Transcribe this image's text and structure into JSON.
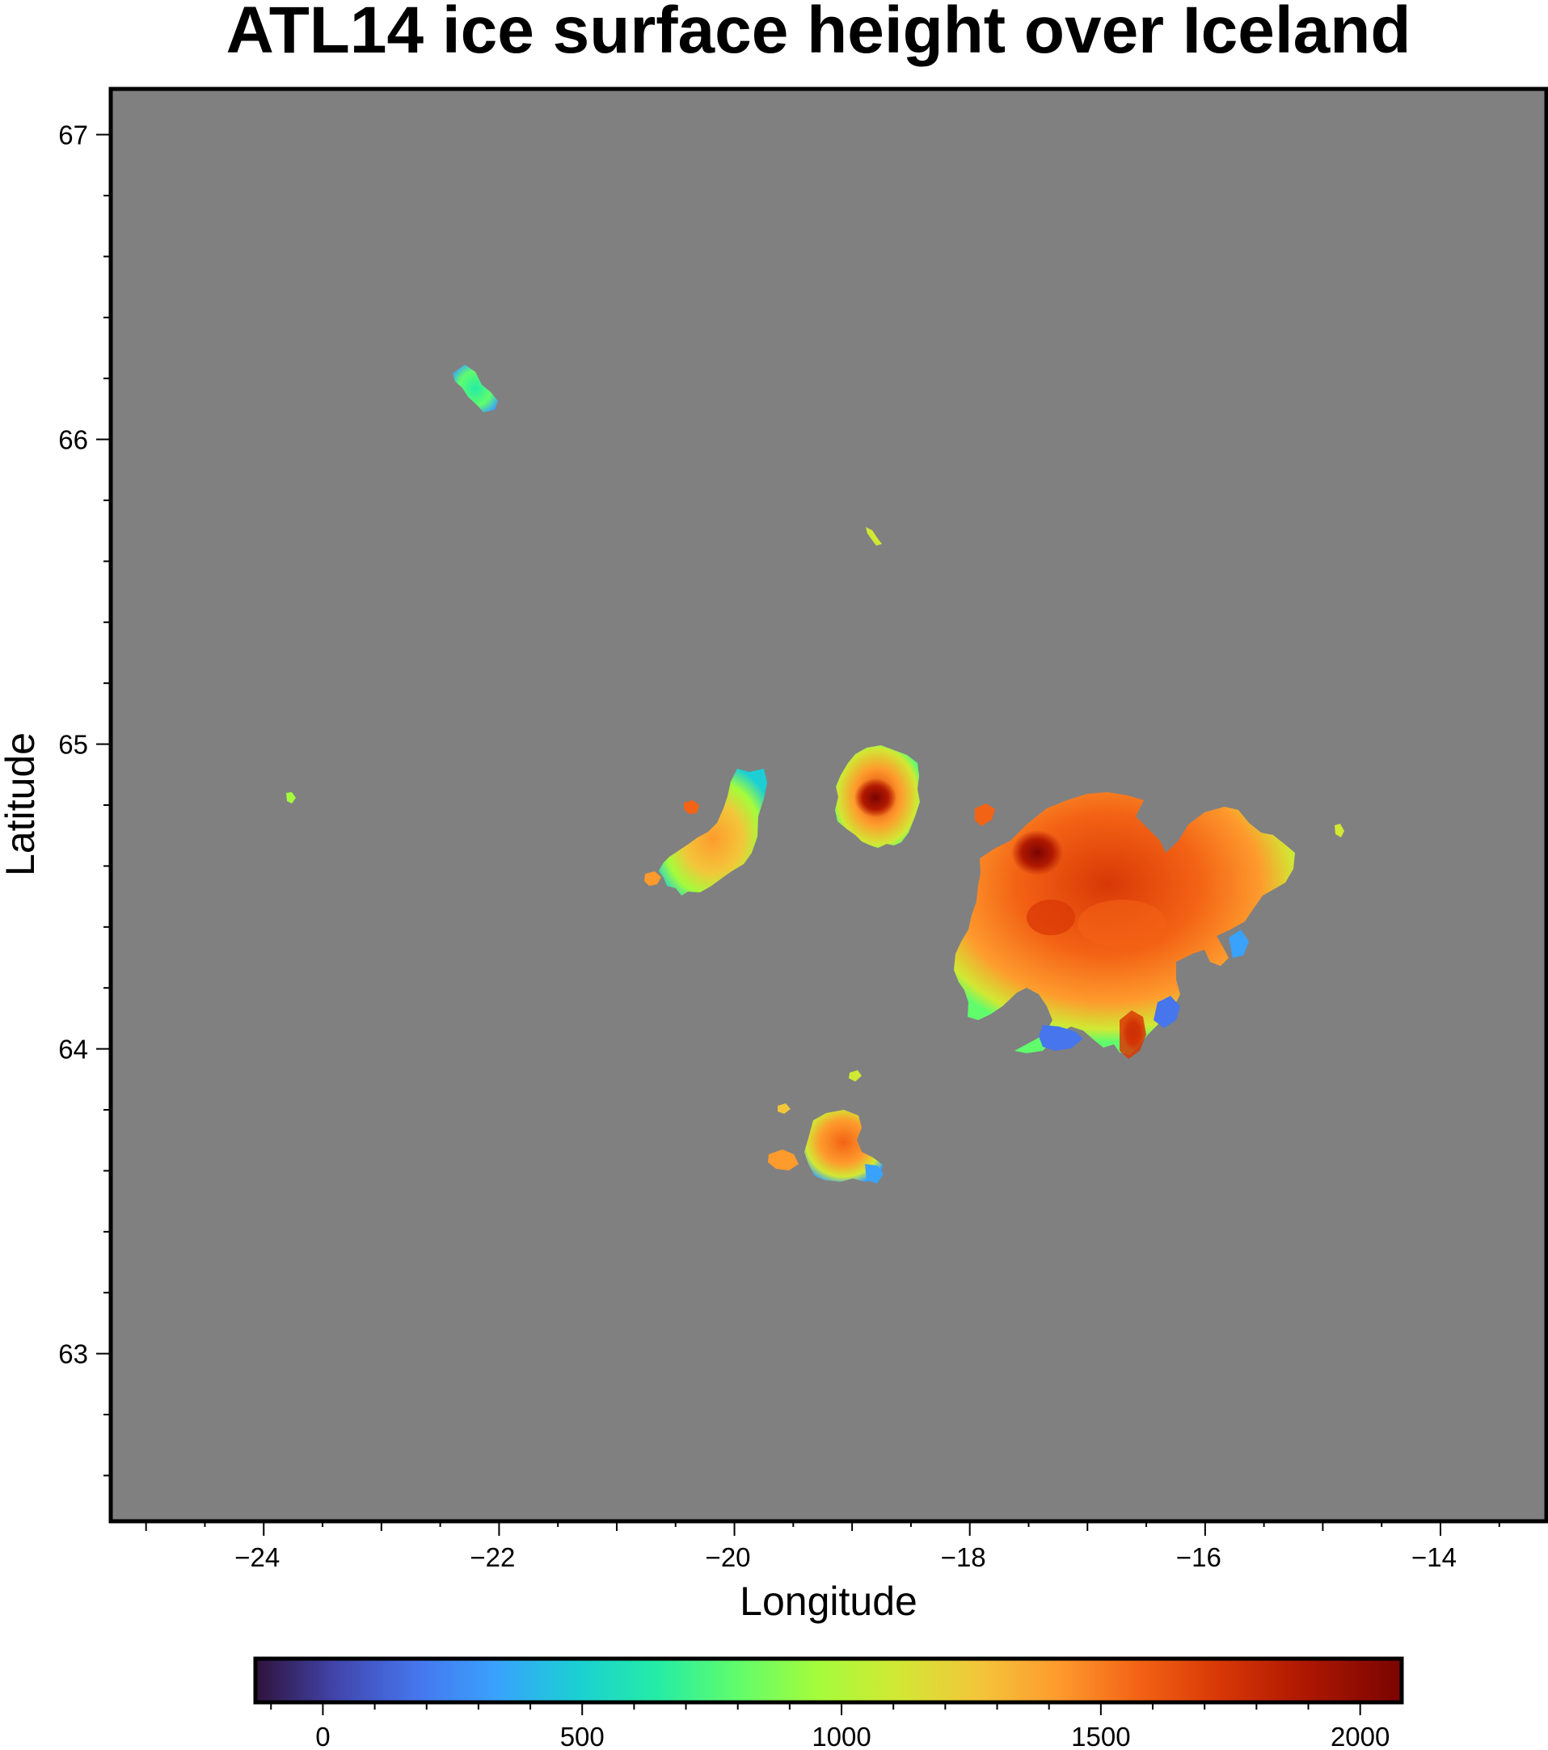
{
  "map": {
    "title": "ATL14 ice surface height over Iceland",
    "xlabel": "Longitude",
    "ylabel": "Latitude",
    "background_color": "#808080",
    "xlim": [
      -25.3,
      -13.1
    ],
    "ylim": [
      62.45,
      67.15
    ],
    "x_ticks": [
      -24,
      -22,
      -20,
      -18,
      -16,
      -14
    ],
    "x_tick_labels": [
      "−24",
      "−22",
      "−20",
      "−18",
      "−16",
      "−14"
    ],
    "y_ticks": [
      63,
      64,
      65,
      66,
      67
    ],
    "y_tick_labels": [
      "63",
      "64",
      "65",
      "66",
      "67"
    ],
    "colormap": "turbo",
    "colorbar": {
      "range": [
        -130,
        2080
      ],
      "ticks": [
        0,
        500,
        1000,
        1500,
        2000
      ],
      "tick_labels": [
        "0",
        "500",
        "1000",
        "1500",
        "2000"
      ]
    },
    "ice_caps": [
      {
        "lon": -22.25,
        "lat": 66.15,
        "elevation": 900
      },
      {
        "lon": -18.92,
        "lat": 65.67,
        "elevation": 1200
      },
      {
        "lon": -23.78,
        "lat": 64.81,
        "elevation": 1100
      },
      {
        "lon": -20.25,
        "lat": 64.67,
        "elevation": 1300
      },
      {
        "lon": -19.0,
        "lat": 64.82,
        "elevation": 1750
      },
      {
        "lon": -18.0,
        "lat": 64.75,
        "elevation": 1400
      },
      {
        "lon": -14.9,
        "lat": 64.7,
        "elevation": 1150
      },
      {
        "lon": -17.0,
        "lat": 64.4,
        "elevation": 1600
      },
      {
        "lon": -17.55,
        "lat": 64.63,
        "elevation": 2050
      },
      {
        "lon": -16.65,
        "lat": 64.02,
        "elevation": 2000
      },
      {
        "lon": -19.15,
        "lat": 63.67,
        "elevation": 1450
      },
      {
        "lon": -19.6,
        "lat": 63.63,
        "elevation": 1400
      },
      {
        "lon": -18.95,
        "lat": 63.9,
        "elevation": 1100
      },
      {
        "lon": -19.55,
        "lat": 63.78,
        "elevation": 1300
      }
    ]
  }
}
